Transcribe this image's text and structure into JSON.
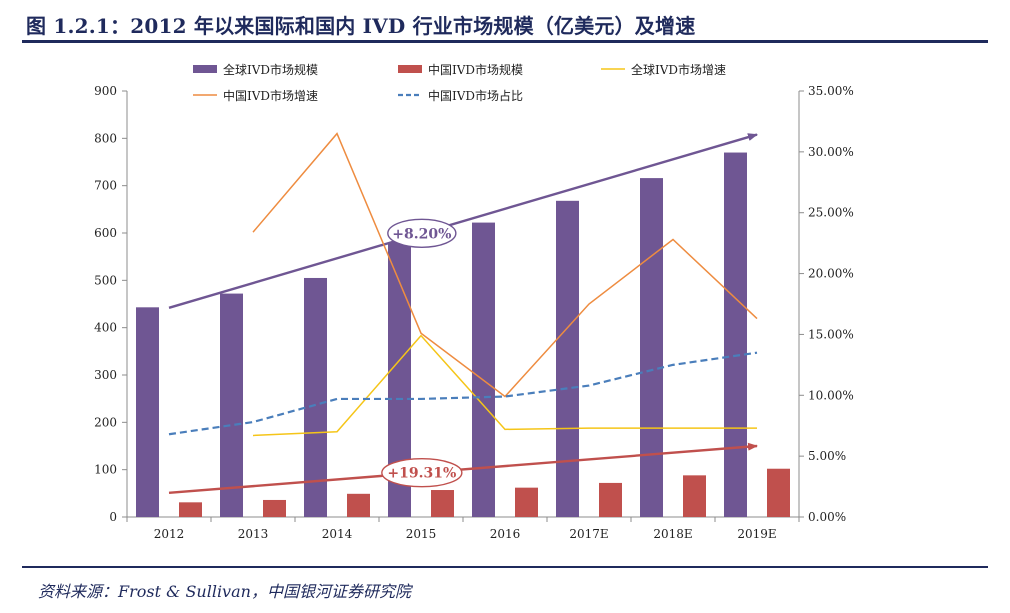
{
  "title": "图 1.2.1：2012 年以来国际和国内 IVD 行业市场规模（亿美元）及增速",
  "source": "资料来源：Frost & Sullivan，中国银河证券研究院",
  "chart_data": {
    "type": "bar",
    "categories": [
      "2012",
      "2013",
      "2014",
      "2015",
      "2016",
      "2017E",
      "2018E",
      "2019E"
    ],
    "y_left": {
      "min": 0,
      "max": 900,
      "step": 100,
      "ticks": [
        "0",
        "100",
        "200",
        "300",
        "400",
        "500",
        "600",
        "700",
        "800",
        "900"
      ]
    },
    "y_right": {
      "min": 0,
      "max": 35,
      "step": 5,
      "ticks": [
        "0.00%",
        "5.00%",
        "10.00%",
        "15.00%",
        "20.00%",
        "25.00%",
        "30.00%",
        "35.00%"
      ]
    },
    "legend_position": "top",
    "grid": false,
    "series": [
      {
        "name": "全球IVD市场规模",
        "kind": "bar",
        "axis": "left",
        "color": "#6f5693",
        "values": [
          443,
          472,
          505,
          580,
          622,
          668,
          716,
          770
        ]
      },
      {
        "name": "中国IVD市场规模",
        "kind": "bar",
        "axis": "left",
        "color": "#c0504d",
        "values": [
          31,
          36,
          49,
          57,
          62,
          72,
          88,
          102
        ]
      },
      {
        "name": "全球IVD市场增速",
        "kind": "line",
        "axis": "right",
        "color": "#f5c518",
        "style": "solid",
        "values": [
          null,
          6.7,
          7.0,
          14.9,
          7.2,
          7.3,
          7.3,
          7.3
        ]
      },
      {
        "name": "中国IVD市场增速",
        "kind": "line",
        "axis": "right",
        "color": "#ee8c40",
        "style": "solid",
        "values": [
          null,
          23.4,
          31.5,
          15.1,
          9.9,
          17.5,
          22.8,
          16.3
        ]
      },
      {
        "name": "中国IVD市场占比",
        "kind": "line",
        "axis": "right",
        "color": "#4a7ebb",
        "style": "dashed",
        "values": [
          6.8,
          7.8,
          9.7,
          9.7,
          9.9,
          10.8,
          12.5,
          13.5
        ]
      }
    ],
    "annotations": [
      {
        "text": "+8.20%",
        "color": "#6f5693",
        "arrow_from": {
          "x": "2012",
          "y": 442
        },
        "arrow_to": {
          "x": "2019E",
          "y": 808
        }
      },
      {
        "text": "+19.31%",
        "color": "#c0504d",
        "arrow_from": {
          "x": "2012",
          "y": 51
        },
        "arrow_to": {
          "x": "2019E",
          "y": 150
        }
      }
    ]
  }
}
